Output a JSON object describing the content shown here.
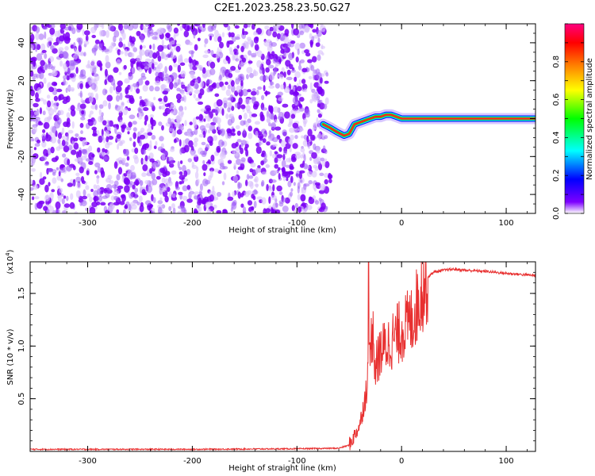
{
  "title": "C2E1.2023.258.23.50.G27",
  "chart_data": [
    {
      "type": "heatmap",
      "xlabel": "Height of straight line (km)",
      "ylabel": "Frequency (Hz)",
      "xlim": [
        -355,
        128
      ],
      "ylim": [
        -50,
        50
      ],
      "xticks": [
        -300,
        -200,
        -100,
        0,
        100
      ],
      "xtick_labels": [
        "-300",
        "-200",
        "-100",
        "0",
        "100"
      ],
      "yticks": [
        -40,
        -20,
        0,
        20,
        40
      ],
      "ytick_labels": [
        "-40",
        "-20",
        "0",
        "20",
        "40"
      ],
      "noise_region_x": [
        -355,
        -70
      ],
      "signal_trace": {
        "x": [
          -75,
          -68,
          -62,
          -55,
          -50,
          -45,
          -40,
          -35,
          -30,
          -25,
          -20,
          -15,
          -10,
          -5,
          0,
          5,
          10,
          20,
          128
        ],
        "y": [
          -3,
          -5,
          -7,
          -9,
          -8,
          -3,
          -2,
          -1,
          0,
          1,
          1,
          2,
          2,
          1,
          0,
          0,
          0,
          0,
          0
        ]
      },
      "colorbar": {
        "label": "Normalized spectral amplitude",
        "range": [
          0,
          1
        ],
        "ticks": [
          0.0,
          0.2,
          0.4,
          0.6,
          0.8
        ],
        "tick_labels": [
          "0.0",
          "0.2",
          "0.4",
          "0.6",
          "0.8"
        ],
        "colors": [
          "#ffffff",
          "#7d00ff",
          "#0000ff",
          "#00ffff",
          "#00ff00",
          "#ffff00",
          "#ff8000",
          "#ff0000",
          "#ff00ff"
        ]
      },
      "grid": false
    },
    {
      "type": "line",
      "xlabel": "Height of straight line (km)",
      "ylabel": "SNR (10 * v/v)",
      "y_multiplier_label": "(x10",
      "y_multiplier_exp": "4",
      "y_multiplier_close": ")",
      "xlim": [
        -355,
        128
      ],
      "ylim": [
        0,
        18000
      ],
      "xticks": [
        -300,
        -200,
        -100,
        0,
        100
      ],
      "xtick_labels": [
        "-300",
        "-200",
        "-100",
        "0",
        "100"
      ],
      "yticks": [
        5000,
        10000,
        15000
      ],
      "ytick_labels": [
        "0.5",
        "1.0",
        "1.5"
      ],
      "series": [
        {
          "color": "#e83030",
          "x": [
            -355,
            -200,
            -100,
            -60,
            -50,
            -45,
            -40,
            -35,
            -30,
            -28,
            -25,
            -20,
            -15,
            -10,
            -5,
            0,
            5,
            10,
            15,
            20,
            25,
            30,
            40,
            50,
            60,
            80,
            100,
            128
          ],
          "y": [
            200,
            200,
            250,
            300,
            600,
            1500,
            2500,
            5000,
            9000,
            12000,
            8000,
            9500,
            10000,
            10500,
            11000,
            11500,
            12000,
            12500,
            14000,
            15500,
            16500,
            17000,
            17200,
            17300,
            17200,
            17100,
            16900,
            16700
          ]
        }
      ],
      "grid": false
    }
  ]
}
